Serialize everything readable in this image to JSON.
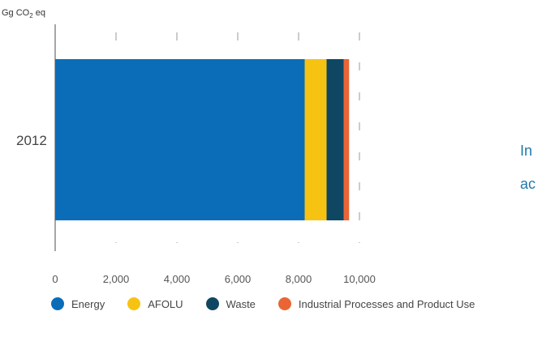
{
  "chart_data": {
    "type": "bar",
    "orientation": "horizontal",
    "stacked": true,
    "categories": [
      "2012"
    ],
    "ylabel_unit": "Gg CO2 eq",
    "xlim": [
      0,
      10000
    ],
    "xticks": [
      "0",
      "2,000",
      "4,000",
      "6,000",
      "8,000",
      "10,000"
    ],
    "grid": "vertical dashed",
    "legend_position": "bottom",
    "series": [
      {
        "name": "Energy",
        "values": [
          8200
        ],
        "color": "#0b6db8"
      },
      {
        "name": "AFOLU",
        "values": [
          720
        ],
        "color": "#f7c313"
      },
      {
        "name": "Waste",
        "values": [
          560
        ],
        "color": "#0f4763"
      },
      {
        "name": "Industrial Processes and Product Use",
        "values": [
          180
        ],
        "color": "#ea6535"
      }
    ]
  },
  "side_text": {
    "line1": "In",
    "line2": "ac"
  }
}
